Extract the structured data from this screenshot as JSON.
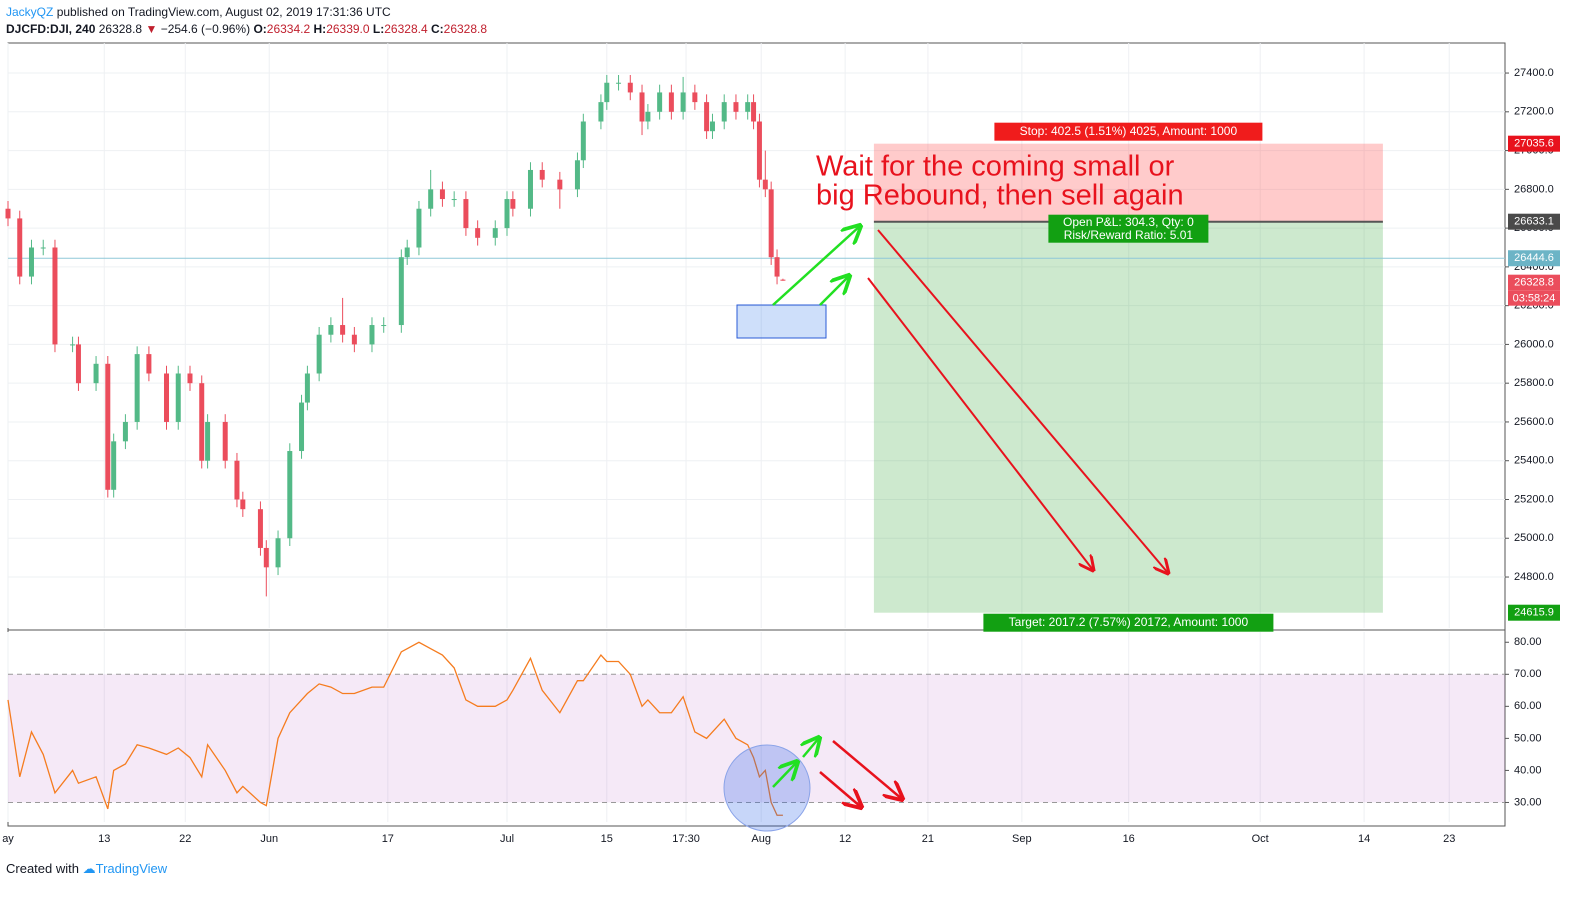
{
  "header": {
    "author": "JackyQZ",
    "published": "published on TradingView.com, August 02, 2019 17:31:36 UTC",
    "symbol": "DJCFD:DJI, 240",
    "price": "26328.8",
    "change": "−254.6 (−0.96%)",
    "o_label": "O:",
    "o": "26334.2",
    "h_label": "H:",
    "h": "26339.0",
    "l_label": "L:",
    "l": "26328.4",
    "c_label": "C:",
    "c": "26328.8"
  },
  "footer": {
    "created": "Created with",
    "brand": "TradingView"
  },
  "chart_data": [
    {
      "type": "candlestick",
      "up_color": "#53b987",
      "down_color": "#eb4d5c",
      "grid": true,
      "x": [
        0,
        2,
        4,
        6,
        8,
        11,
        12,
        15,
        17,
        18,
        20,
        22,
        24,
        27,
        29,
        31,
        33,
        34,
        37,
        39,
        40,
        43,
        44,
        46,
        48,
        50,
        51,
        53,
        55,
        57,
        59,
        62,
        64,
        67,
        68,
        70,
        72,
        74,
        76,
        78,
        80,
        83,
        85,
        86,
        89,
        91,
        94,
        97,
        98,
        101,
        102,
        104,
        106,
        108,
        109,
        111,
        113,
        115,
        117,
        119,
        120,
        122,
        124,
        126,
        127,
        128,
        129,
        130,
        131,
        132
      ],
      "candles": [
        [
          26700,
          26740,
          26610,
          26650
        ],
        [
          26650,
          26690,
          26310,
          26350
        ],
        [
          26350,
          26540,
          26310,
          26500
        ],
        [
          26500,
          26540,
          26460,
          26500
        ],
        [
          26500,
          26540,
          25960,
          26000
        ],
        [
          26000,
          26040,
          25960,
          26000
        ],
        [
          26000,
          26040,
          25760,
          25800
        ],
        [
          25800,
          25940,
          25760,
          25900
        ],
        [
          25900,
          25940,
          25210,
          25250
        ],
        [
          25250,
          25540,
          25210,
          25500
        ],
        [
          25500,
          25640,
          25460,
          25600
        ],
        [
          25600,
          25990,
          25560,
          25950
        ],
        [
          25950,
          25990,
          25810,
          25850
        ],
        [
          25850,
          25890,
          25560,
          25600
        ],
        [
          25600,
          25890,
          25560,
          25850
        ],
        [
          25850,
          25890,
          25760,
          25800
        ],
        [
          25800,
          25840,
          25360,
          25400
        ],
        [
          25400,
          25640,
          25360,
          25600
        ],
        [
          25600,
          25640,
          25360,
          25400
        ],
        [
          25400,
          25440,
          25160,
          25200
        ],
        [
          25200,
          25240,
          25110,
          25150
        ],
        [
          25150,
          25190,
          24910,
          24950
        ],
        [
          24950,
          24990,
          24700,
          24850
        ],
        [
          24850,
          25040,
          24810,
          25000
        ],
        [
          25000,
          25490,
          24960,
          25450
        ],
        [
          25450,
          25740,
          25410,
          25700
        ],
        [
          25700,
          25890,
          25660,
          25850
        ],
        [
          25850,
          26090,
          25810,
          26050
        ],
        [
          26050,
          26140,
          26010,
          26100
        ],
        [
          26100,
          26240,
          26010,
          26050
        ],
        [
          26050,
          26090,
          25960,
          26000
        ],
        [
          26000,
          26140,
          25960,
          26100
        ],
        [
          26100,
          26140,
          26060,
          26100
        ],
        [
          26100,
          26490,
          26060,
          26450
        ],
        [
          26450,
          26540,
          26410,
          26500
        ],
        [
          26500,
          26740,
          26460,
          26700
        ],
        [
          26700,
          26900,
          26660,
          26800
        ],
        [
          26800,
          26840,
          26710,
          26750
        ],
        [
          26750,
          26790,
          26710,
          26750
        ],
        [
          26750,
          26790,
          26560,
          26600
        ],
        [
          26600,
          26640,
          26510,
          26550
        ],
        [
          26550,
          26640,
          26510,
          26600
        ],
        [
          26600,
          26790,
          26560,
          26750
        ],
        [
          26750,
          26790,
          26660,
          26700
        ],
        [
          26700,
          26940,
          26660,
          26900
        ],
        [
          26900,
          26940,
          26810,
          26850
        ],
        [
          26850,
          26890,
          26700,
          26800
        ],
        [
          26800,
          26990,
          26760,
          26950
        ],
        [
          26950,
          27190,
          26910,
          27150
        ],
        [
          27150,
          27290,
          27110,
          27250
        ],
        [
          27250,
          27390,
          27210,
          27350
        ],
        [
          27350,
          27390,
          27310,
          27350
        ],
        [
          27350,
          27390,
          27260,
          27300
        ],
        [
          27300,
          27340,
          27080,
          27150
        ],
        [
          27150,
          27240,
          27110,
          27200
        ],
        [
          27200,
          27340,
          27160,
          27300
        ],
        [
          27300,
          27340,
          27160,
          27200
        ],
        [
          27200,
          27380,
          27160,
          27300
        ],
        [
          27300,
          27340,
          27210,
          27250
        ],
        [
          27250,
          27290,
          27060,
          27100
        ],
        [
          27100,
          27190,
          27060,
          27150
        ],
        [
          27150,
          27290,
          27110,
          27250
        ],
        [
          27250,
          27290,
          27160,
          27200
        ],
        [
          27200,
          27290,
          27160,
          27250
        ],
        [
          27250,
          27290,
          27110,
          27150
        ],
        [
          27150,
          27190,
          26810,
          26850
        ],
        [
          26850,
          27000,
          26760,
          26800
        ],
        [
          26800,
          26840,
          26410,
          26450
        ],
        [
          26450,
          26490,
          26310,
          26350
        ],
        [
          26334.2,
          26339.0,
          26328.4,
          26328.8
        ]
      ],
      "xlim": [
        0,
        255
      ],
      "xticks": [
        {
          "value": 0,
          "label": "ay"
        },
        {
          "value": 16.4,
          "label": "13"
        },
        {
          "value": 30.2,
          "label": "22"
        },
        {
          "value": 44.5,
          "label": "Jun"
        },
        {
          "value": 64.7,
          "label": "17"
        },
        {
          "value": 85,
          "label": "Jul"
        },
        {
          "value": 102,
          "label": "15"
        },
        {
          "value": 115.5,
          "label": "17:30"
        },
        {
          "value": 128.3,
          "label": "Aug"
        },
        {
          "value": 142.6,
          "label": "12"
        },
        {
          "value": 156.7,
          "label": "21"
        },
        {
          "value": 172.7,
          "label": "Sep"
        },
        {
          "value": 190.9,
          "label": "16"
        },
        {
          "value": 213.3,
          "label": "Oct"
        },
        {
          "value": 231,
          "label": "14"
        },
        {
          "value": 245.5,
          "label": "23"
        }
      ],
      "ylim": [
        24537,
        27555
      ],
      "yticks": [
        {
          "value": 24800,
          "label": "24800.0"
        },
        {
          "value": 25000,
          "label": "25000.0"
        },
        {
          "value": 25200,
          "label": "25200.0"
        },
        {
          "value": 25400,
          "label": "25400.0"
        },
        {
          "value": 25600,
          "label": "25600.0"
        },
        {
          "value": 25800,
          "label": "25800.0"
        },
        {
          "value": 26000,
          "label": "26000.0"
        },
        {
          "value": 26200,
          "label": "26200.0"
        },
        {
          "value": 26400,
          "label": "26400.0"
        },
        {
          "value": 26600,
          "label": "26600.0"
        },
        {
          "value": 26800,
          "label": "26800.0"
        },
        {
          "value": 27000,
          "label": "27000.0"
        },
        {
          "value": 27200,
          "label": "27200.0"
        },
        {
          "value": 27400,
          "label": "27400.0"
        }
      ],
      "crosshair_price": {
        "value": 26444.6,
        "label": "26444.6"
      },
      "last_price": {
        "value": 26328.8,
        "label": "26328.8",
        "timer": "03:58:24"
      },
      "position": {
        "x": [
          147.5,
          234.2
        ],
        "stop": {
          "value": 27035.6,
          "label": "27035.6"
        },
        "entry": {
          "value": 26633.1,
          "label": "26633.1"
        },
        "target": {
          "value": 24615.9,
          "label": "24615.9"
        },
        "stop_text": "Stop: 402.5 (1.51%) 4025, Amount: 1000",
        "pnl_text": "Open P&L: 304.3, Qty: 0",
        "rr_text": "Risk/Reward Ratio: 5.01",
        "target_text": "Target: 2017.2 (7.57%) 20172, Amount: 1000"
      },
      "annotation": [
        "Wait for the coming small or",
        "big Rebound, then sell again"
      ]
    },
    {
      "type": "line",
      "color": "#f57c1f",
      "band": [
        30,
        70
      ],
      "values": [
        62,
        38,
        52,
        45,
        33,
        40,
        36,
        38,
        28,
        40,
        42,
        48,
        47,
        45,
        47,
        44,
        38,
        48,
        40,
        33,
        35,
        30,
        29,
        50,
        58,
        62,
        64,
        67,
        66,
        64,
        64,
        66,
        66,
        77,
        78,
        80,
        78,
        76,
        72,
        62,
        60,
        60,
        62,
        65,
        75,
        65,
        58,
        68,
        68,
        76,
        74,
        74,
        70,
        60,
        62,
        58,
        58,
        63,
        52,
        50,
        52,
        56,
        50,
        48,
        44,
        38,
        40,
        30,
        26,
        26
      ],
      "ylim": [
        23.9,
        83.2
      ],
      "yticks": [
        {
          "value": 30,
          "label": "30.00"
        },
        {
          "value": 40,
          "label": "40.00"
        },
        {
          "value": 50,
          "label": "50.00"
        },
        {
          "value": 60,
          "label": "60.00"
        },
        {
          "value": 70,
          "label": "70.00"
        },
        {
          "value": 80,
          "label": "80.00"
        }
      ]
    }
  ]
}
